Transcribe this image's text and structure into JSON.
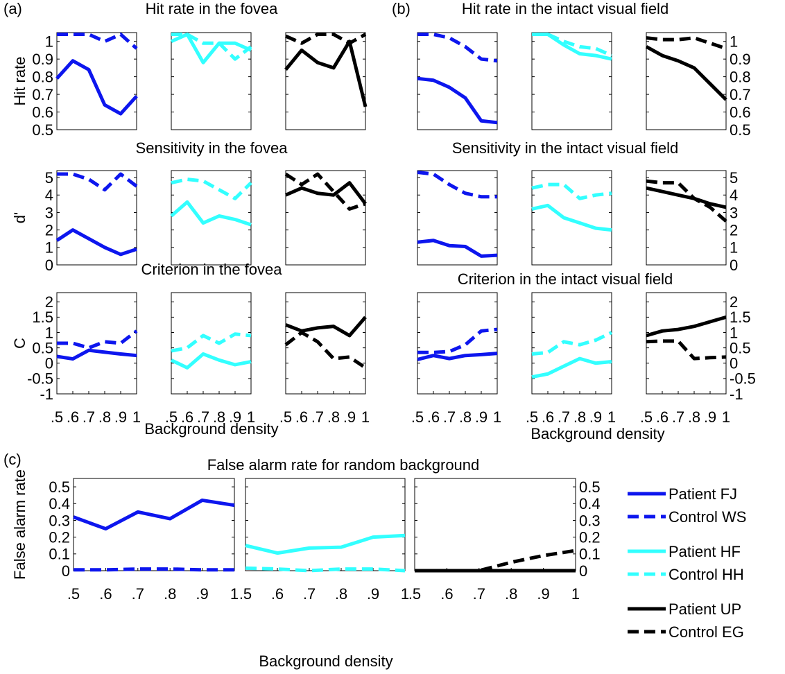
{
  "chart_data": [
    {
      "type": "line",
      "panel_label": "(a)",
      "title": "Hit rate in the fovea",
      "ylabel": "Hit rate",
      "x": [
        0.5,
        0.6,
        0.7,
        0.8,
        0.9,
        1.0
      ],
      "xlim": [
        0.5,
        1.0
      ],
      "ylim": [
        0.5,
        1.05
      ],
      "yticks": [
        0.5,
        0.6,
        0.7,
        0.8,
        0.9,
        1
      ],
      "ytick_side": "left",
      "panels": [
        {
          "series": [
            {
              "color": "#0d16ee",
              "dashed": false,
              "values": [
                0.79,
                0.89,
                0.84,
                0.64,
                0.59,
                0.69
              ]
            },
            {
              "color": "#0d16ee",
              "dashed": true,
              "values": [
                1.04,
                1.04,
                1.04,
                1.0,
                1.04,
                0.96
              ]
            }
          ]
        },
        {
          "series": [
            {
              "color": "#33ffff",
              "dashed": false,
              "values": [
                1.0,
                1.04,
                0.88,
                0.99,
                0.99,
                0.95
              ]
            },
            {
              "color": "#33ffff",
              "dashed": true,
              "values": [
                1.04,
                1.04,
                0.99,
                0.99,
                0.9,
                0.97
              ]
            }
          ]
        },
        {
          "series": [
            {
              "color": "#000000",
              "dashed": false,
              "values": [
                0.84,
                0.95,
                0.88,
                0.85,
                1.0,
                0.63
              ]
            },
            {
              "color": "#000000",
              "dashed": true,
              "values": [
                1.03,
                0.99,
                1.04,
                1.04,
                0.99,
                1.04
              ]
            }
          ]
        }
      ]
    },
    {
      "type": "line",
      "title": "Sensitivity in the fovea",
      "ylabel": "d'",
      "x": [
        0.5,
        0.6,
        0.7,
        0.8,
        0.9,
        1.0
      ],
      "xlim": [
        0.5,
        1.0
      ],
      "ylim": [
        0,
        5.4
      ],
      "yticks": [
        0,
        1,
        2,
        3,
        4,
        5
      ],
      "ytick_side": "left",
      "panels": [
        {
          "series": [
            {
              "color": "#0d16ee",
              "dashed": false,
              "values": [
                1.4,
                2.0,
                1.5,
                1.0,
                0.6,
                0.9
              ]
            },
            {
              "color": "#0d16ee",
              "dashed": true,
              "values": [
                5.2,
                5.2,
                4.9,
                4.3,
                5.2,
                4.5
              ]
            }
          ]
        },
        {
          "series": [
            {
              "color": "#33ffff",
              "dashed": false,
              "values": [
                2.8,
                3.6,
                2.4,
                2.8,
                2.6,
                2.3
              ]
            },
            {
              "color": "#33ffff",
              "dashed": true,
              "values": [
                4.7,
                4.9,
                4.8,
                4.3,
                3.8,
                4.7
              ]
            }
          ]
        },
        {
          "series": [
            {
              "color": "#000000",
              "dashed": false,
              "values": [
                4.0,
                4.4,
                4.1,
                4.0,
                4.7,
                3.5
              ]
            },
            {
              "color": "#000000",
              "dashed": true,
              "values": [
                5.2,
                4.6,
                5.2,
                4.2,
                3.2,
                3.5
              ]
            }
          ]
        }
      ]
    },
    {
      "type": "line",
      "title": "Criterion in the fovea",
      "ylabel": "C",
      "xlabel": "Background density",
      "x": [
        0.5,
        0.6,
        0.7,
        0.8,
        0.9,
        1.0
      ],
      "xlim": [
        0.5,
        1.0
      ],
      "xticks": [
        {
          "value": 0.5,
          "label": ".5"
        },
        {
          "value": 0.6,
          "label": ".6"
        },
        {
          "value": 0.7,
          "label": ".7"
        },
        {
          "value": 0.8,
          "label": ".8"
        },
        {
          "value": 0.9,
          "label": ".9"
        },
        1
      ],
      "ylim": [
        -1,
        2.3
      ],
      "yticks": [
        -1,
        -0.5,
        0,
        0.5,
        1,
        1.5,
        2
      ],
      "ytick_side": "left",
      "panels": [
        {
          "series": [
            {
              "color": "#0d16ee",
              "dashed": false,
              "values": [
                0.22,
                0.14,
                0.42,
                0.36,
                0.3,
                0.25
              ]
            },
            {
              "color": "#0d16ee",
              "dashed": true,
              "values": [
                0.65,
                0.65,
                0.5,
                0.7,
                0.65,
                1.05
              ]
            }
          ]
        },
        {
          "series": [
            {
              "color": "#33ffff",
              "dashed": false,
              "values": [
                0.1,
                -0.15,
                0.3,
                0.1,
                -0.05,
                0.05
              ]
            },
            {
              "color": "#33ffff",
              "dashed": true,
              "values": [
                0.4,
                0.5,
                0.9,
                0.65,
                0.95,
                0.9
              ]
            }
          ]
        },
        {
          "series": [
            {
              "color": "#000000",
              "dashed": false,
              "values": [
                1.25,
                1.05,
                1.15,
                1.2,
                0.9,
                1.5
              ]
            },
            {
              "color": "#000000",
              "dashed": true,
              "values": [
                0.6,
                1.0,
                0.7,
                0.15,
                0.2,
                -0.15
              ]
            }
          ]
        }
      ]
    },
    {
      "type": "line",
      "panel_label": "(b)",
      "title": "Hit rate in the intact visual field",
      "x": [
        0.5,
        0.6,
        0.7,
        0.8,
        0.9,
        1.0
      ],
      "xlim": [
        0.5,
        1.0
      ],
      "ylim": [
        0.5,
        1.05
      ],
      "yticks": [
        0.5,
        0.6,
        0.7,
        0.8,
        0.9,
        1
      ],
      "ytick_side": "right",
      "panels": [
        {
          "series": [
            {
              "color": "#0d16ee",
              "dashed": false,
              "values": [
                0.79,
                0.78,
                0.74,
                0.68,
                0.55,
                0.54
              ]
            },
            {
              "color": "#0d16ee",
              "dashed": true,
              "values": [
                1.04,
                1.04,
                1.02,
                0.97,
                0.9,
                0.89
              ]
            }
          ]
        },
        {
          "series": [
            {
              "color": "#33ffff",
              "dashed": false,
              "values": [
                1.04,
                1.04,
                0.98,
                0.93,
                0.92,
                0.9
              ]
            },
            {
              "color": "#33ffff",
              "dashed": true,
              "values": [
                1.04,
                1.04,
                1.0,
                0.97,
                0.96,
                0.92
              ]
            }
          ]
        },
        {
          "series": [
            {
              "color": "#000000",
              "dashed": false,
              "values": [
                0.97,
                0.92,
                0.89,
                0.85,
                0.76,
                0.67
              ]
            },
            {
              "color": "#000000",
              "dashed": true,
              "values": [
                1.02,
                1.01,
                1.01,
                1.02,
                0.99,
                0.96
              ]
            }
          ]
        }
      ]
    },
    {
      "type": "line",
      "title": "Sensitivity in the intact visual field",
      "x": [
        0.5,
        0.6,
        0.7,
        0.8,
        0.9,
        1.0
      ],
      "xlim": [
        0.5,
        1.0
      ],
      "ylim": [
        0,
        5.4
      ],
      "yticks": [
        0,
        1,
        2,
        3,
        4,
        5
      ],
      "ytick_side": "right",
      "panels": [
        {
          "series": [
            {
              "color": "#0d16ee",
              "dashed": false,
              "values": [
                1.3,
                1.4,
                1.1,
                1.05,
                0.5,
                0.55
              ]
            },
            {
              "color": "#0d16ee",
              "dashed": true,
              "values": [
                5.3,
                5.2,
                4.6,
                4.1,
                3.9,
                3.9
              ]
            }
          ]
        },
        {
          "series": [
            {
              "color": "#33ffff",
              "dashed": false,
              "values": [
                3.2,
                3.4,
                2.7,
                2.4,
                2.1,
                2.0
              ]
            },
            {
              "color": "#33ffff",
              "dashed": true,
              "values": [
                4.4,
                4.6,
                4.6,
                3.8,
                4.0,
                4.1
              ]
            }
          ]
        },
        {
          "series": [
            {
              "color": "#000000",
              "dashed": false,
              "values": [
                4.4,
                4.2,
                4.0,
                3.8,
                3.5,
                3.3
              ]
            },
            {
              "color": "#000000",
              "dashed": true,
              "values": [
                4.8,
                4.7,
                4.7,
                3.8,
                3.3,
                2.5
              ]
            }
          ]
        }
      ]
    },
    {
      "type": "line",
      "title": "Criterion in the intact visual field",
      "xlabel": "Background density",
      "x": [
        0.5,
        0.6,
        0.7,
        0.8,
        0.9,
        1.0
      ],
      "xlim": [
        0.5,
        1.0
      ],
      "xticks": [
        {
          "value": 0.5,
          "label": ".5"
        },
        {
          "value": 0.6,
          "label": ".6"
        },
        {
          "value": 0.7,
          "label": ".7"
        },
        {
          "value": 0.8,
          "label": ".8"
        },
        {
          "value": 0.9,
          "label": ".9"
        },
        1
      ],
      "ylim": [
        -1,
        2.3
      ],
      "yticks": [
        -1,
        -0.5,
        0,
        0.5,
        1,
        1.5,
        2
      ],
      "ytick_side": "right",
      "panels": [
        {
          "series": [
            {
              "color": "#0d16ee",
              "dashed": false,
              "values": [
                0.12,
                0.25,
                0.15,
                0.25,
                0.28,
                0.32
              ]
            },
            {
              "color": "#0d16ee",
              "dashed": true,
              "values": [
                0.35,
                0.35,
                0.38,
                0.6,
                1.05,
                1.1
              ]
            }
          ]
        },
        {
          "series": [
            {
              "color": "#33ffff",
              "dashed": false,
              "values": [
                -0.45,
                -0.35,
                -0.1,
                0.15,
                0.0,
                0.05
              ]
            },
            {
              "color": "#33ffff",
              "dashed": true,
              "values": [
                0.3,
                0.35,
                0.7,
                0.6,
                0.75,
                1.0
              ]
            }
          ]
        },
        {
          "series": [
            {
              "color": "#000000",
              "dashed": false,
              "values": [
                0.9,
                1.05,
                1.1,
                1.2,
                1.35,
                1.5
              ]
            },
            {
              "color": "#000000",
              "dashed": true,
              "values": [
                0.7,
                0.72,
                0.72,
                0.15,
                0.18,
                0.2
              ]
            }
          ]
        }
      ]
    },
    {
      "type": "line",
      "panel_label": "(c)",
      "title": "False alarm rate for random background",
      "ylabel": "False alarm rate",
      "xlabel": "Background density",
      "x": [
        0.5,
        0.6,
        0.7,
        0.8,
        0.9,
        1.0
      ],
      "xlim": [
        0.5,
        1.0
      ],
      "xticks": [
        {
          "value": 0.5,
          "label": ".5"
        },
        {
          "value": 0.6,
          "label": ".6"
        },
        {
          "value": 0.7,
          "label": ".7"
        },
        {
          "value": 0.8,
          "label": ".8"
        },
        {
          "value": 0.9,
          "label": ".9"
        },
        1
      ],
      "ylim": [
        0,
        0.55
      ],
      "yticks": [
        0,
        0.1,
        0.2,
        0.3,
        0.4,
        0.5
      ],
      "ytick_side": "both",
      "panels": [
        {
          "series": [
            {
              "color": "#0d16ee",
              "dashed": false,
              "values": [
                0.32,
                0.25,
                0.35,
                0.31,
                0.42,
                0.39
              ]
            },
            {
              "color": "#0d16ee",
              "dashed": true,
              "values": [
                0.005,
                0.005,
                0.01,
                0.01,
                0.005,
                0.005
              ]
            }
          ]
        },
        {
          "series": [
            {
              "color": "#33ffff",
              "dashed": false,
              "values": [
                0.15,
                0.105,
                0.135,
                0.14,
                0.2,
                0.21
              ]
            },
            {
              "color": "#33ffff",
              "dashed": true,
              "values": [
                0.015,
                0.01,
                0.0,
                0.01,
                0.01,
                0.0
              ]
            }
          ]
        },
        {
          "series": [
            {
              "color": "#000000",
              "dashed": true,
              "values": [
                0,
                0,
                0,
                0.05,
                0.09,
                0.12
              ]
            },
            {
              "color": "#000000",
              "dashed": false,
              "values": [
                0,
                0,
                0,
                0,
                0,
                0
              ]
            }
          ]
        }
      ],
      "legend": [
        {
          "name": "Patient FJ",
          "color": "#0d16ee",
          "dashed": false
        },
        {
          "name": "Control WS",
          "color": "#0d16ee",
          "dashed": true
        },
        {
          "name": "Patient HF",
          "color": "#33ffff",
          "dashed": false
        },
        {
          "name": "Control HH",
          "color": "#33ffff",
          "dashed": true
        },
        {
          "name": "Patient UP",
          "color": "#000000",
          "dashed": false
        },
        {
          "name": "Control EG",
          "color": "#000000",
          "dashed": true
        }
      ]
    }
  ]
}
